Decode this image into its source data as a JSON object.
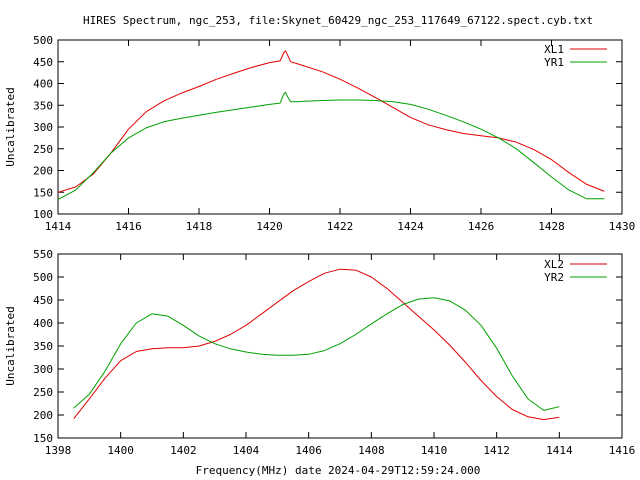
{
  "title": "HIRES Spectrum, ngc_253, file:Skynet_60429_ngc_253_117649_67122.spect.cyb.txt",
  "xlabel": "Frequency(MHz) date 2024-04-29T12:59:24.000",
  "colors": {
    "series1": "#e00000",
    "series2": "#00a000"
  },
  "chart_data": [
    {
      "type": "line",
      "ylabel": "Uncalibrated",
      "xlim": [
        1414,
        1430
      ],
      "ylim": [
        100,
        500
      ],
      "xticks": [
        1414,
        1416,
        1418,
        1420,
        1422,
        1424,
        1426,
        1428,
        1430
      ],
      "yticks": [
        100,
        150,
        200,
        250,
        300,
        350,
        400,
        450,
        500
      ],
      "legend_position": "top-right",
      "series": [
        {
          "name": "XL1",
          "x": [
            1414.0,
            1414.5,
            1415.0,
            1415.5,
            1416.0,
            1416.5,
            1417.0,
            1417.5,
            1418.0,
            1418.5,
            1419.0,
            1419.5,
            1420.0,
            1420.3,
            1420.4,
            1420.45,
            1420.5,
            1420.6,
            1420.8,
            1421.0,
            1421.5,
            1422.0,
            1422.5,
            1423.0,
            1423.5,
            1424.0,
            1424.5,
            1425.0,
            1425.5,
            1426.0,
            1426.5,
            1427.0,
            1427.5,
            1428.0,
            1428.5,
            1429.0,
            1429.5
          ],
          "y": [
            150,
            162,
            192,
            240,
            295,
            335,
            360,
            378,
            393,
            410,
            424,
            437,
            448,
            452,
            470,
            475,
            468,
            450,
            445,
            440,
            427,
            410,
            390,
            368,
            345,
            322,
            305,
            294,
            285,
            280,
            275,
            265,
            248,
            225,
            195,
            168,
            152
          ]
        },
        {
          "name": "YR1",
          "x": [
            1414.0,
            1414.5,
            1415.0,
            1415.5,
            1416.0,
            1416.5,
            1417.0,
            1417.5,
            1418.0,
            1418.5,
            1419.0,
            1419.5,
            1420.0,
            1420.3,
            1420.4,
            1420.45,
            1420.5,
            1420.6,
            1420.8,
            1421.0,
            1421.5,
            1422.0,
            1422.5,
            1423.0,
            1423.5,
            1424.0,
            1424.5,
            1425.0,
            1425.5,
            1426.0,
            1426.5,
            1427.0,
            1427.5,
            1428.0,
            1428.5,
            1429.0,
            1429.5
          ],
          "y": [
            133,
            155,
            195,
            240,
            275,
            298,
            312,
            320,
            327,
            334,
            340,
            346,
            352,
            355,
            375,
            380,
            372,
            358,
            358,
            359,
            361,
            362,
            362,
            361,
            358,
            352,
            341,
            327,
            312,
            295,
            275,
            250,
            218,
            185,
            155,
            135,
            135
          ]
        }
      ]
    },
    {
      "type": "line",
      "ylabel": "Uncalibrated",
      "xlim": [
        1398,
        1416
      ],
      "ylim": [
        150,
        550
      ],
      "xticks": [
        1398,
        1400,
        1402,
        1404,
        1406,
        1408,
        1410,
        1412,
        1414,
        1416
      ],
      "yticks": [
        150,
        200,
        250,
        300,
        350,
        400,
        450,
        500,
        550
      ],
      "legend_position": "top-right",
      "series": [
        {
          "name": "XL2",
          "x": [
            1398.5,
            1399.0,
            1399.5,
            1400.0,
            1400.5,
            1401.0,
            1401.5,
            1402.0,
            1402.5,
            1403.0,
            1403.5,
            1404.0,
            1404.5,
            1405.0,
            1405.5,
            1406.0,
            1406.5,
            1407.0,
            1407.5,
            1408.0,
            1408.5,
            1409.0,
            1409.5,
            1410.0,
            1410.5,
            1411.0,
            1411.5,
            1412.0,
            1412.5,
            1413.0,
            1413.5,
            1414.0
          ],
          "y": [
            192,
            235,
            280,
            318,
            338,
            344,
            346,
            346,
            350,
            360,
            375,
            395,
            420,
            445,
            470,
            490,
            508,
            517,
            515,
            500,
            475,
            445,
            415,
            385,
            352,
            315,
            275,
            240,
            212,
            196,
            190,
            195
          ]
        },
        {
          "name": "YR2",
          "x": [
            1398.5,
            1399.0,
            1399.5,
            1400.0,
            1400.5,
            1401.0,
            1401.5,
            1402.0,
            1402.5,
            1403.0,
            1403.5,
            1404.0,
            1404.5,
            1405.0,
            1405.5,
            1406.0,
            1406.5,
            1407.0,
            1407.5,
            1408.0,
            1408.5,
            1409.0,
            1409.5,
            1410.0,
            1410.5,
            1411.0,
            1411.5,
            1412.0,
            1412.5,
            1413.0,
            1413.5,
            1414.0
          ],
          "y": [
            215,
            245,
            295,
            355,
            400,
            420,
            415,
            395,
            372,
            355,
            344,
            337,
            332,
            330,
            330,
            332,
            340,
            355,
            375,
            398,
            420,
            440,
            452,
            455,
            448,
            428,
            395,
            345,
            285,
            235,
            210,
            218
          ]
        }
      ]
    }
  ]
}
